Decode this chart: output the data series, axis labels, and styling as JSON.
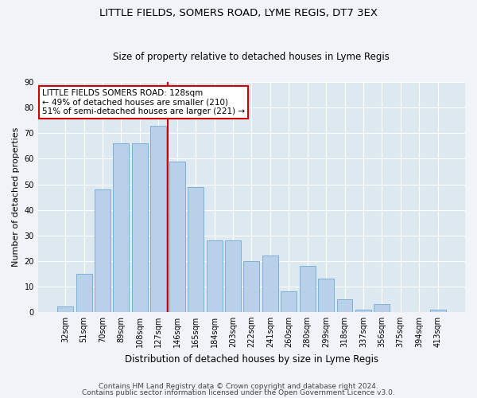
{
  "title": "LITTLE FIELDS, SOMERS ROAD, LYME REGIS, DT7 3EX",
  "subtitle": "Size of property relative to detached houses in Lyme Regis",
  "xlabel": "Distribution of detached houses by size in Lyme Regis",
  "ylabel": "Number of detached properties",
  "categories": [
    "32sqm",
    "51sqm",
    "70sqm",
    "89sqm",
    "108sqm",
    "127sqm",
    "146sqm",
    "165sqm",
    "184sqm",
    "203sqm",
    "222sqm",
    "241sqm",
    "260sqm",
    "280sqm",
    "299sqm",
    "318sqm",
    "337sqm",
    "356sqm",
    "375sqm",
    "394sqm",
    "413sqm"
  ],
  "values": [
    2,
    15,
    48,
    66,
    66,
    73,
    59,
    49,
    28,
    28,
    20,
    22,
    8,
    18,
    13,
    5,
    1,
    3,
    0,
    0,
    1
  ],
  "bar_color": "#b8d0e8",
  "bar_edge_color": "#7aafd4",
  "vline_x_index": 5,
  "vline_color": "#cc0000",
  "ylim": [
    0,
    90
  ],
  "yticks": [
    0,
    10,
    20,
    30,
    40,
    50,
    60,
    70,
    80,
    90
  ],
  "annotation_text": "LITTLE FIELDS SOMERS ROAD: 128sqm\n← 49% of detached houses are smaller (210)\n51% of semi-detached houses are larger (221) →",
  "annotation_box_color": "#cc0000",
  "footer_line1": "Contains HM Land Registry data © Crown copyright and database right 2024.",
  "footer_line2": "Contains public sector information licensed under the Open Government Licence v3.0.",
  "bg_color": "#dde8f0",
  "grid_color": "#ffffff",
  "fig_bg_color": "#f0f4f8",
  "title_fontsize": 9.5,
  "subtitle_fontsize": 8.5,
  "annotation_fontsize": 7.5,
  "tick_fontsize": 7,
  "ylabel_fontsize": 8,
  "xlabel_fontsize": 8.5,
  "footer_fontsize": 6.5
}
